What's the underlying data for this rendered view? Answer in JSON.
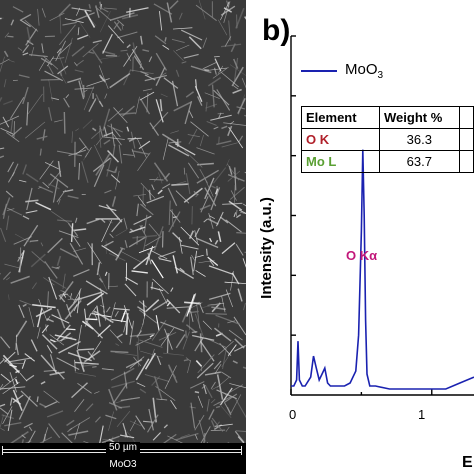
{
  "panel_a": {
    "scale_bar_text": "50 µm",
    "sample_label": "MoO3"
  },
  "panel_b": {
    "label": "b)",
    "legend_base": "MoO",
    "legend_sub": "3",
    "table": {
      "headers": [
        "Element",
        "Weight %"
      ],
      "rows": [
        {
          "element": "O K",
          "weight": "36.3",
          "color": "#b0202a"
        },
        {
          "element": "Mo L",
          "weight": "63.7",
          "color": "#5aa033"
        }
      ]
    },
    "peak_label": "O Kα",
    "y_axis_label": "Intensity  (a.u.)",
    "x_tick_labels": [
      "0",
      "1"
    ],
    "x_axis_label_fragment": "E"
  },
  "chart_data": {
    "type": "line",
    "xlabel": "E",
    "ylabel": "Intensity  (a.u.)",
    "xlim": [
      0,
      1.3
    ],
    "ylim": [
      0,
      1.2
    ],
    "series": [
      {
        "name": "MoO3",
        "color": "#1a22b0",
        "x": [
          0.0,
          0.02,
          0.04,
          0.05,
          0.06,
          0.08,
          0.1,
          0.14,
          0.16,
          0.18,
          0.2,
          0.22,
          0.24,
          0.26,
          0.28,
          0.3,
          0.34,
          0.38,
          0.42,
          0.46,
          0.48,
          0.5,
          0.51,
          0.52,
          0.53,
          0.54,
          0.56,
          0.6,
          0.7,
          0.8,
          0.9,
          1.0,
          1.1,
          1.2,
          1.3
        ],
        "y": [
          0.03,
          0.03,
          0.05,
          0.18,
          0.05,
          0.03,
          0.03,
          0.06,
          0.13,
          0.09,
          0.05,
          0.07,
          0.09,
          0.04,
          0.03,
          0.03,
          0.03,
          0.03,
          0.04,
          0.08,
          0.2,
          0.55,
          0.82,
          0.6,
          0.25,
          0.07,
          0.03,
          0.03,
          0.02,
          0.02,
          0.02,
          0.02,
          0.02,
          0.04,
          0.06
        ]
      }
    ],
    "annotations": [
      {
        "text": "O Kα",
        "x": 0.51,
        "y": 0.82
      }
    ]
  }
}
